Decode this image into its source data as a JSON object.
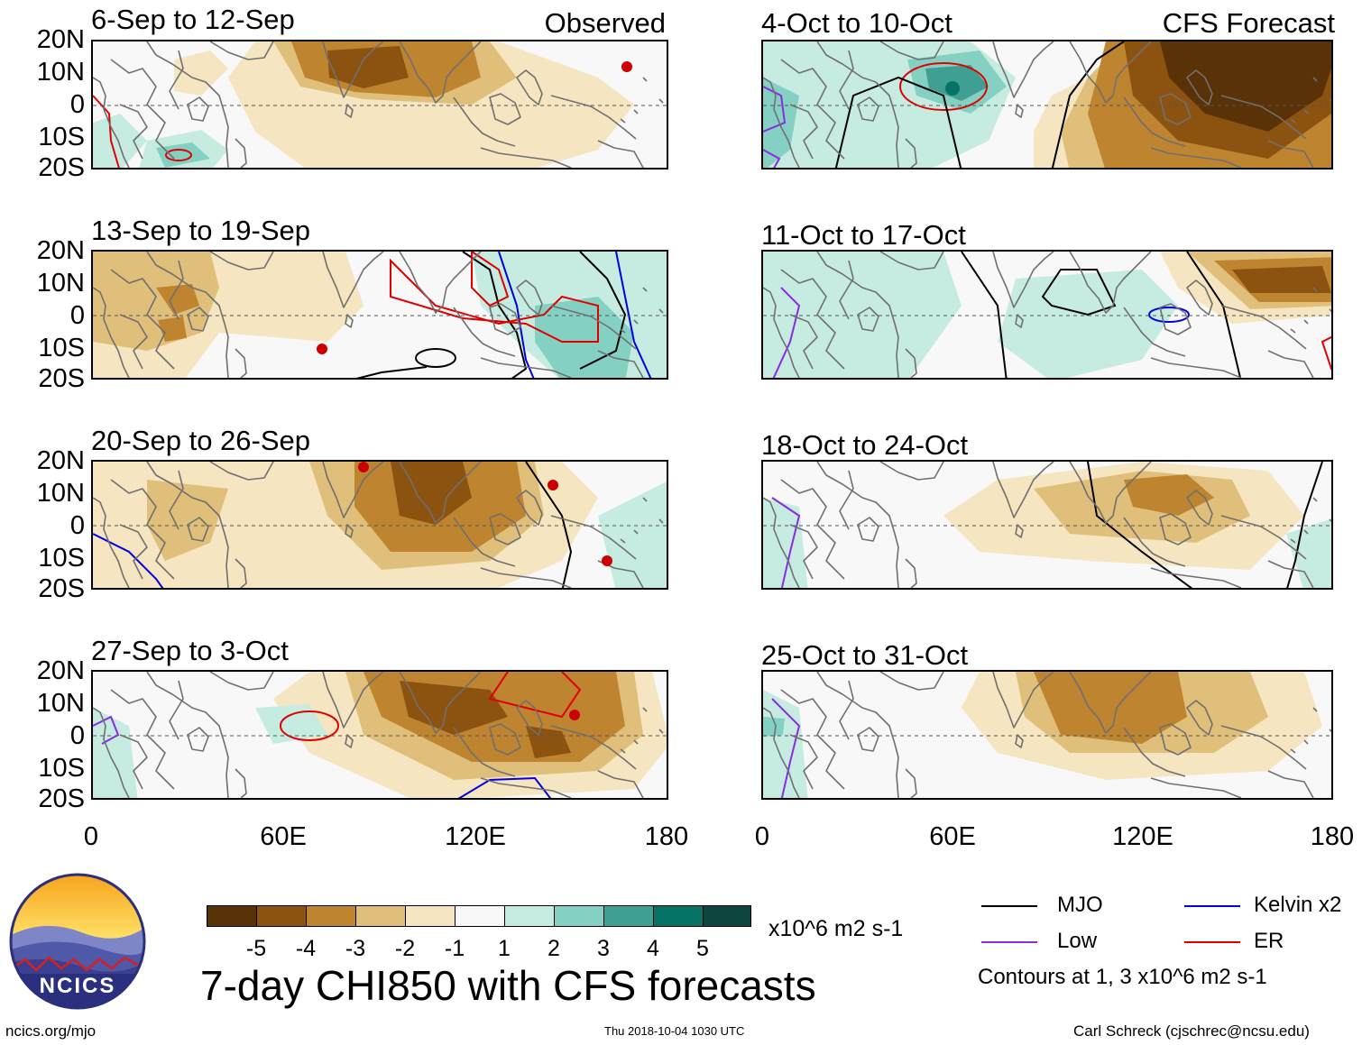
{
  "colors": {
    "brown_dark": "#5a3208",
    "brown": "#8c520f",
    "brown_mid": "#be842f",
    "tan": "#dfbf79",
    "tan_light": "#f5e5c0",
    "white": "#f8f8f8",
    "teal_light": "#c6ece2",
    "teal": "#84d0c2",
    "teal_mid": "#3f9f92",
    "teal_dark": "#077266",
    "teal_darkest": "#0c463f",
    "mjo": "#000000",
    "low": "#8a2be2",
    "kelvin": "#0000e0",
    "er": "#e00000",
    "coast": "#707070"
  },
  "axes": {
    "y_ticks": [
      "20N",
      "10N",
      "0",
      "10S",
      "20S"
    ],
    "x_ticks": [
      "0",
      "60E",
      "120E",
      "180"
    ]
  },
  "left_header": "Observed",
  "right_header": "CFS Forecast",
  "panels_left": [
    {
      "title": "6-Sep to 12-Sep"
    },
    {
      "title": "13-Sep to 19-Sep"
    },
    {
      "title": "20-Sep to 26-Sep"
    },
    {
      "title": "27-Sep to 3-Oct"
    }
  ],
  "panels_right": [
    {
      "title": "4-Oct to 10-Oct"
    },
    {
      "title": "11-Oct to 17-Oct"
    },
    {
      "title": "18-Oct to 24-Oct"
    },
    {
      "title": "25-Oct to 31-Oct"
    }
  ],
  "colorbar": {
    "labels": [
      "-5",
      "-4",
      "-3",
      "-2",
      "-1",
      "1",
      "2",
      "3",
      "4",
      "5"
    ],
    "units": "x10^6 m2 s-1"
  },
  "main_title": "7-day CHI850 with CFS forecasts",
  "logo_text": "NCICS",
  "legend": {
    "mjo": "MJO",
    "low": "Low",
    "kelvin": "Kelvin x2",
    "er": "ER",
    "note": "Contours at 1, 3 x10^6 m2 s-1"
  },
  "footer": {
    "left": "ncics.org/mjo",
    "center": "Thu 2018-10-04 1030 UTC",
    "right": "Carl Schreck (cjschrec@ncsu.edu)"
  }
}
